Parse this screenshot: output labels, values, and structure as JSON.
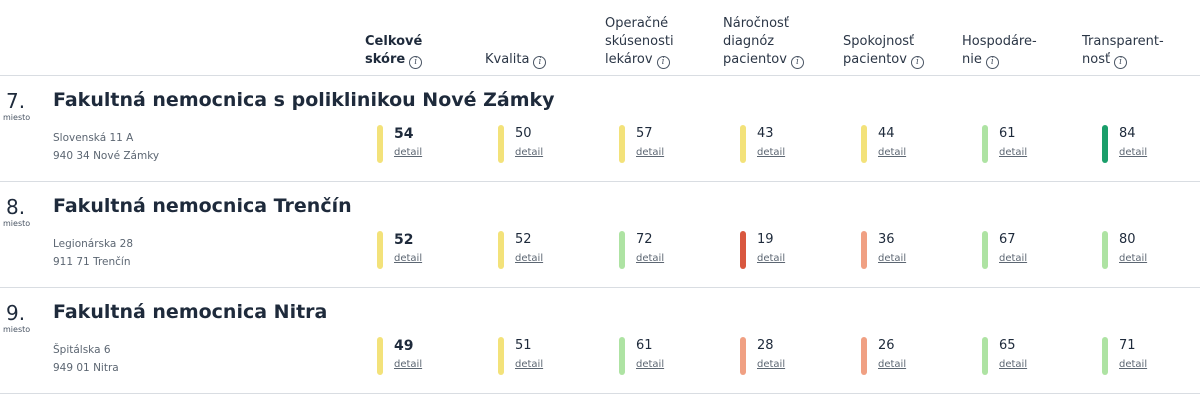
{
  "columns": [
    {
      "label": "Celkové skóre",
      "lines": [
        "Celkové",
        "skóre"
      ],
      "bold": true
    },
    {
      "label": "Kvalita",
      "lines": [
        "Kvalita"
      ],
      "bold": false
    },
    {
      "label": "Operačné skúsenosti lekárov",
      "lines": [
        "Operačné",
        "skúsenosti",
        "lekárov"
      ],
      "bold": false
    },
    {
      "label": "Náročnosť diagnóz pacientov",
      "lines": [
        "Náročnosť",
        "diagnóz",
        "pacientov"
      ],
      "bold": false
    },
    {
      "label": "Spokojnosť pacientov",
      "lines": [
        "Spokojnosť",
        "pacientov"
      ],
      "bold": false
    },
    {
      "label": "Hospodárenie",
      "lines": [
        "Hospodáre-",
        "nie"
      ],
      "bold": false
    },
    {
      "label": "Transparentnosť",
      "lines": [
        "Transparent-",
        "nosť"
      ],
      "bold": false
    }
  ],
  "info_icon_glyph": "i",
  "rank_suffix": "miesto",
  "detail_label": "detail",
  "colors": {
    "yellow": "#f3e27a",
    "light_green": "#aee3a3",
    "dark_green": "#1a9e6a",
    "salmon": "#f0a083",
    "red": "#d9573f"
  },
  "hospitals": [
    {
      "rank": "7.",
      "name": "Fakultná nemocnica s poliklinikou Nové Zámky",
      "address_line1": "Slovenská 11 A",
      "address_line2": "940 34 Nové Zámky",
      "scores": [
        {
          "value": "54",
          "level": "yellow"
        },
        {
          "value": "50",
          "level": "yellow"
        },
        {
          "value": "57",
          "level": "yellow"
        },
        {
          "value": "43",
          "level": "yellow"
        },
        {
          "value": "44",
          "level": "yellow"
        },
        {
          "value": "61",
          "level": "light_green"
        },
        {
          "value": "84",
          "level": "dark_green"
        }
      ]
    },
    {
      "rank": "8.",
      "name": "Fakultná nemocnica Trenčín",
      "address_line1": "Legionárska 28",
      "address_line2": "911 71 Trenčín",
      "scores": [
        {
          "value": "52",
          "level": "yellow"
        },
        {
          "value": "52",
          "level": "yellow"
        },
        {
          "value": "72",
          "level": "light_green"
        },
        {
          "value": "19",
          "level": "red"
        },
        {
          "value": "36",
          "level": "salmon"
        },
        {
          "value": "67",
          "level": "light_green"
        },
        {
          "value": "80",
          "level": "light_green"
        }
      ]
    },
    {
      "rank": "9.",
      "name": "Fakultná nemocnica Nitra",
      "address_line1": "Špitálska 6",
      "address_line2": "949 01 Nitra",
      "scores": [
        {
          "value": "49",
          "level": "yellow"
        },
        {
          "value": "51",
          "level": "yellow"
        },
        {
          "value": "61",
          "level": "light_green"
        },
        {
          "value": "28",
          "level": "salmon"
        },
        {
          "value": "26",
          "level": "salmon"
        },
        {
          "value": "65",
          "level": "light_green"
        },
        {
          "value": "71",
          "level": "light_green"
        }
      ]
    }
  ]
}
